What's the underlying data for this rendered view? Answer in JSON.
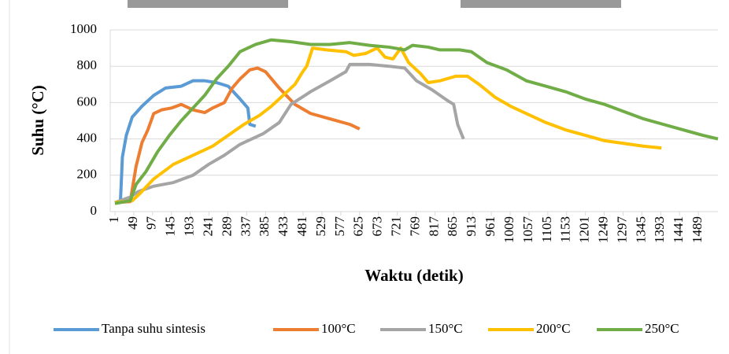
{
  "chart_data": {
    "type": "line",
    "x_label": "Waktu (detik)",
    "y_label": "Suhu (°C)",
    "xlim": [
      1,
      1539
    ],
    "xticks": [
      1,
      49,
      97,
      145,
      193,
      241,
      289,
      337,
      385,
      433,
      481,
      529,
      577,
      625,
      673,
      721,
      769,
      817,
      865,
      913,
      961,
      1009,
      1057,
      1105,
      1153,
      1201,
      1249,
      1297,
      1345,
      1393,
      1441,
      1489
    ],
    "ylim": [
      0,
      1000
    ],
    "yticks": [
      0,
      200,
      400,
      600,
      800,
      1000
    ],
    "grid": true,
    "legend": "bottom",
    "series": [
      {
        "name": "Tanpa suhu sintesis",
        "color": "#5b9bd5",
        "x": [
          1,
          15,
          20,
          30,
          45,
          70,
          100,
          130,
          170,
          200,
          230,
          260,
          290,
          320,
          340,
          345,
          360
        ],
        "values": [
          50,
          55,
          300,
          420,
          520,
          580,
          640,
          680,
          690,
          720,
          720,
          710,
          690,
          620,
          570,
          480,
          470
        ]
      },
      {
        "name": "100°C",
        "color": "#ed7d31",
        "x": [
          1,
          40,
          55,
          70,
          85,
          100,
          120,
          145,
          170,
          200,
          230,
          250,
          280,
          300,
          320,
          345,
          365,
          385,
          420,
          460,
          500,
          550,
          600,
          625
        ],
        "values": [
          50,
          55,
          250,
          380,
          450,
          540,
          560,
          570,
          590,
          560,
          545,
          570,
          600,
          680,
          730,
          780,
          790,
          770,
          680,
          590,
          540,
          510,
          480,
          455
        ]
      },
      {
        "name": "150°C",
        "color": "#a5a5a5",
        "x": [
          1,
          40,
          60,
          100,
          150,
          200,
          240,
          280,
          320,
          380,
          420,
          450,
          500,
          550,
          590,
          600,
          650,
          700,
          740,
          770,
          810,
          850,
          865,
          875,
          890
        ],
        "values": [
          50,
          80,
          110,
          140,
          160,
          200,
          260,
          310,
          370,
          430,
          490,
          590,
          660,
          720,
          770,
          810,
          810,
          800,
          790,
          720,
          670,
          610,
          590,
          480,
          400
        ]
      },
      {
        "name": "200°C",
        "color": "#ffc000",
        "x": [
          1,
          45,
          65,
          100,
          150,
          200,
          250,
          290,
          330,
          370,
          400,
          430,
          460,
          480,
          490,
          505,
          540,
          590,
          610,
          640,
          670,
          690,
          710,
          730,
          750,
          780,
          800,
          830,
          870,
          900,
          930,
          970,
          1010,
          1050,
          1100,
          1150,
          1200,
          1250,
          1300,
          1350,
          1395
        ],
        "values": [
          50,
          60,
          100,
          180,
          260,
          310,
          360,
          420,
          480,
          530,
          580,
          640,
          700,
          770,
          800,
          900,
          890,
          880,
          860,
          870,
          900,
          850,
          840,
          900,
          820,
          760,
          710,
          720,
          745,
          745,
          700,
          630,
          580,
          540,
          490,
          450,
          420,
          390,
          375,
          360,
          350
        ]
      },
      {
        "name": "250°C",
        "color": "#70ad47",
        "x": [
          1,
          40,
          55,
          80,
          110,
          140,
          170,
          200,
          230,
          260,
          290,
          320,
          360,
          400,
          450,
          500,
          550,
          600,
          650,
          700,
          740,
          760,
          800,
          830,
          880,
          910,
          950,
          1000,
          1050,
          1100,
          1150,
          1200,
          1250,
          1300,
          1350,
          1400,
          1450,
          1500,
          1539
        ],
        "values": [
          45,
          60,
          150,
          220,
          330,
          420,
          500,
          570,
          640,
          730,
          800,
          880,
          920,
          945,
          935,
          920,
          920,
          930,
          915,
          905,
          890,
          915,
          905,
          890,
          890,
          880,
          820,
          780,
          720,
          690,
          660,
          620,
          590,
          550,
          510,
          480,
          450,
          420,
          400
        ]
      }
    ]
  }
}
